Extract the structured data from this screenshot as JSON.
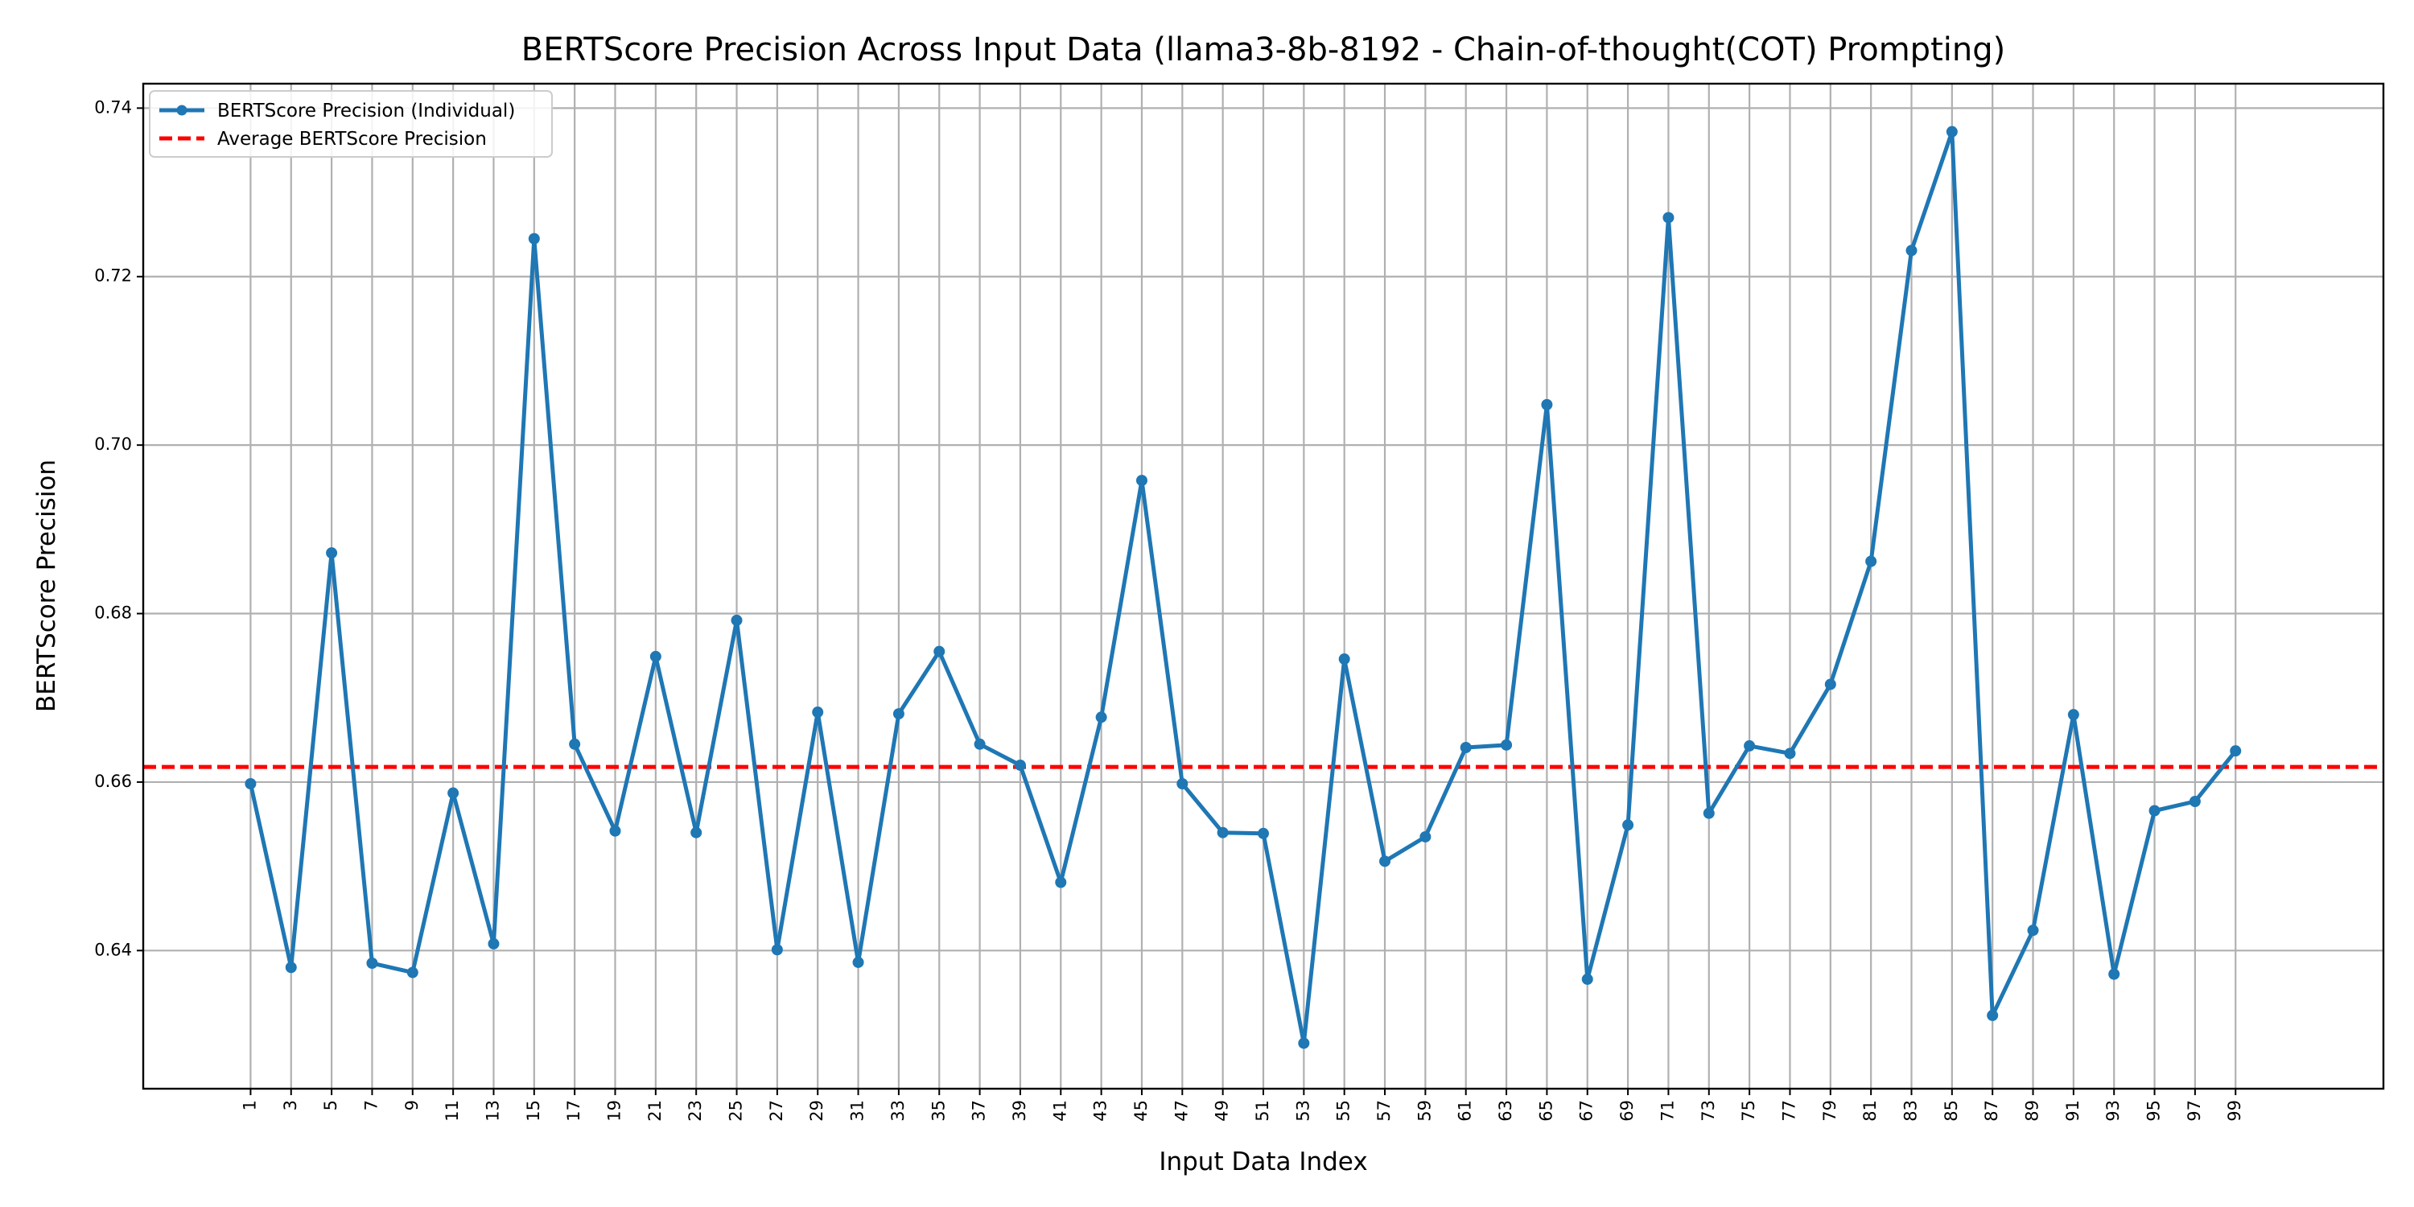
{
  "chart_data": {
    "type": "line",
    "title": "BERTScore Precision Across Input Data (llama3-8b-8192 - Chain-of-thought(COT) Prompting)",
    "xlabel": "Input Data Index",
    "ylabel": "BERTScore Precision",
    "x": [
      1,
      3,
      5,
      7,
      9,
      11,
      13,
      15,
      17,
      19,
      21,
      23,
      25,
      27,
      29,
      31,
      33,
      35,
      37,
      39,
      41,
      43,
      45,
      47,
      49,
      51,
      53,
      55,
      57,
      59,
      61,
      63,
      65,
      67,
      69,
      71,
      73,
      75,
      77,
      79,
      81,
      83,
      85,
      87,
      89,
      91,
      93,
      95,
      97,
      99
    ],
    "xticks": [
      "1",
      "3",
      "5",
      "7",
      "9",
      "11",
      "13",
      "15",
      "17",
      "19",
      "21",
      "23",
      "25",
      "27",
      "29",
      "31",
      "33",
      "35",
      "37",
      "39",
      "41",
      "43",
      "45",
      "47",
      "49",
      "51",
      "53",
      "55",
      "57",
      "59",
      "61",
      "63",
      "65",
      "67",
      "69",
      "71",
      "73",
      "75",
      "77",
      "79",
      "81",
      "83",
      "85",
      "87",
      "89",
      "91",
      "93",
      "95",
      "97",
      "99"
    ],
    "yticks": [
      "0.64",
      "0.66",
      "0.68",
      "0.70",
      "0.72",
      "0.74"
    ],
    "xlim": [
      -4.3,
      106.3
    ],
    "ylim": [
      0.6236,
      0.7429
    ],
    "grid": true,
    "legend_position": "top-left",
    "series": [
      {
        "name": "BERTScore Precision (Individual)",
        "style": "line-with-markers",
        "color": "#1f77b4",
        "values": [
          0.6598,
          0.638,
          0.6872,
          0.6385,
          0.6374,
          0.6587,
          0.6408,
          0.7245,
          0.6645,
          0.6542,
          0.6749,
          0.654,
          0.6792,
          0.6401,
          0.6683,
          0.6386,
          0.6681,
          0.6755,
          0.6645,
          0.662,
          0.6481,
          0.6677,
          0.6958,
          0.6598,
          0.654,
          0.6539,
          0.629,
          0.6746,
          0.6506,
          0.6535,
          0.6641,
          0.6644,
          0.7048,
          0.6366,
          0.6549,
          0.727,
          0.6563,
          0.6643,
          0.6634,
          0.6716,
          0.6862,
          0.7231,
          0.7372,
          0.6323,
          0.6424,
          0.668,
          0.6372,
          0.6566,
          0.6577,
          0.6637
        ]
      },
      {
        "name": "Average BERTScore Precision",
        "style": "dashed",
        "color": "#ff0000",
        "value": 0.6618
      }
    ]
  }
}
